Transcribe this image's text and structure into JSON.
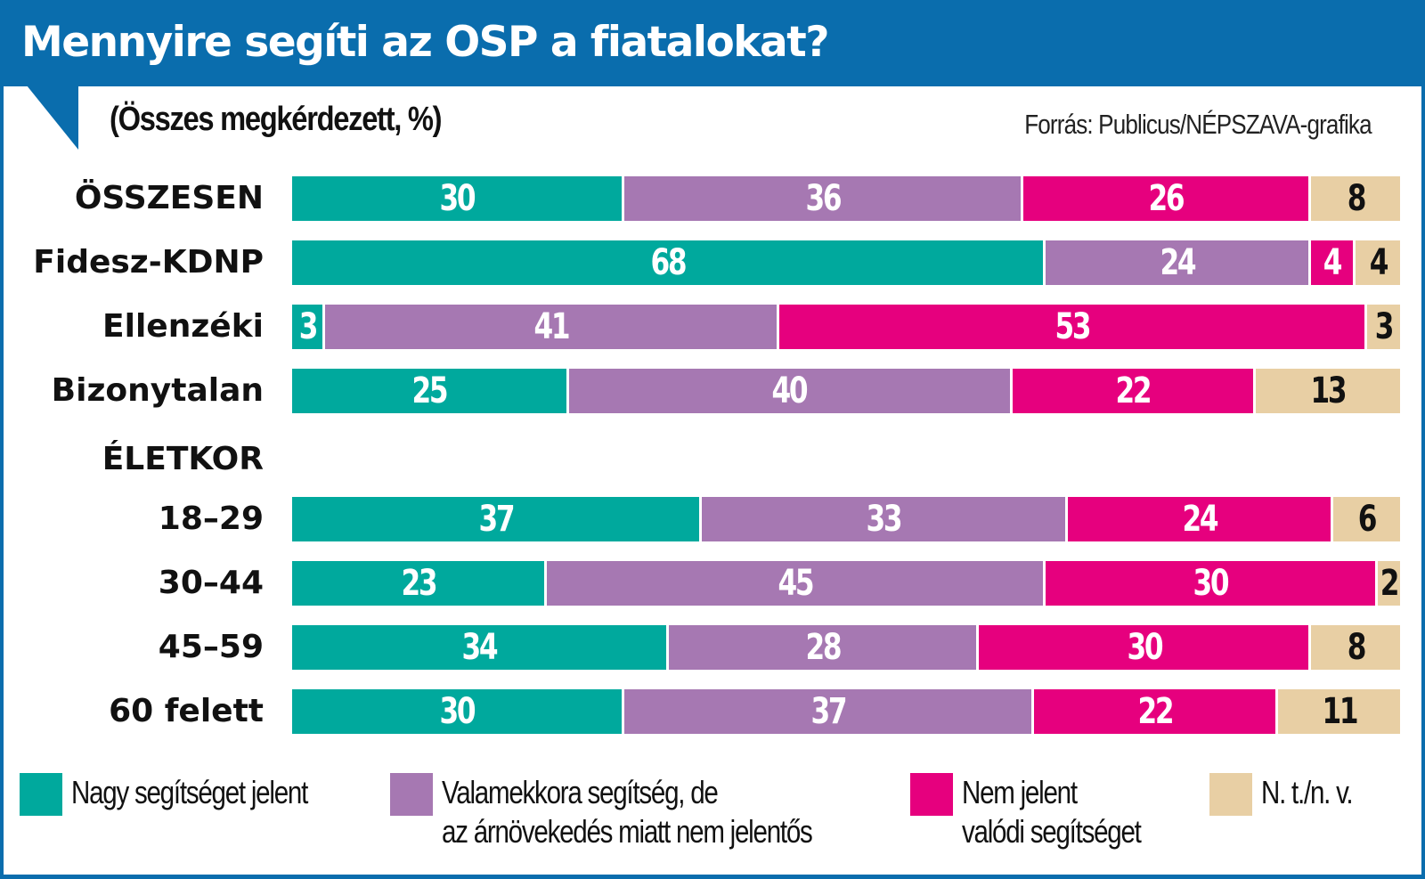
{
  "header": {
    "title": "Mennyire segíti az OSP a fiatalokat?",
    "subtitle": "(Összes megkérdezett, %)",
    "source": "Forrás: Publicus/NÉPSZAVA-grafika"
  },
  "colors": {
    "header_blue": "#0a6dad",
    "nagy": "#00a99d",
    "valamekkora": "#a678b2",
    "nem": "#e6007e",
    "ntnv": "#e8cfa4"
  },
  "chart_data": {
    "type": "bar",
    "orientation": "horizontal",
    "stacked": true,
    "title": "Mennyire segíti az OSP a fiatalokat?",
    "subtitle": "(Összes megkérdezett, %)",
    "source": "Forrás: Publicus/NÉPSZAVA-grafika",
    "xlabel": "",
    "ylabel": "",
    "xlim": [
      0,
      100
    ],
    "grid": false,
    "legend_position": "bottom",
    "group_heading": "ÉLETKOR",
    "categories": [
      "ÖSSZESEN",
      "Fidesz-KDNP",
      "Ellenzéki",
      "Bizonytalan",
      "18–29",
      "30–44",
      "45–59",
      "60 felett"
    ],
    "series": [
      {
        "name": "Nagy segítséget jelent",
        "color": "#00a99d",
        "values": [
          30,
          68,
          3,
          25,
          37,
          23,
          34,
          30
        ]
      },
      {
        "name": "Valamekkora segítség, de az árnövekedés miatt nem jelentős",
        "color": "#a678b2",
        "values": [
          36,
          24,
          41,
          40,
          33,
          45,
          28,
          37
        ]
      },
      {
        "name": "Nem jelent valódi segítséget",
        "color": "#e6007e",
        "values": [
          26,
          4,
          53,
          22,
          24,
          30,
          30,
          22
        ]
      },
      {
        "name": "N. t./n. v.",
        "color": "#e8cfa4",
        "values": [
          8,
          4,
          3,
          13,
          6,
          2,
          8,
          11
        ]
      }
    ]
  },
  "legend": [
    {
      "line1": "Nagy segítséget jelent",
      "line2": ""
    },
    {
      "line1": "Valamekkora segítség, de",
      "line2": "az árnövekedés miatt nem jelentős"
    },
    {
      "line1": "Nem jelent",
      "line2": "valódi segítséget"
    },
    {
      "line1": "N. t./n. v.",
      "line2": ""
    }
  ]
}
